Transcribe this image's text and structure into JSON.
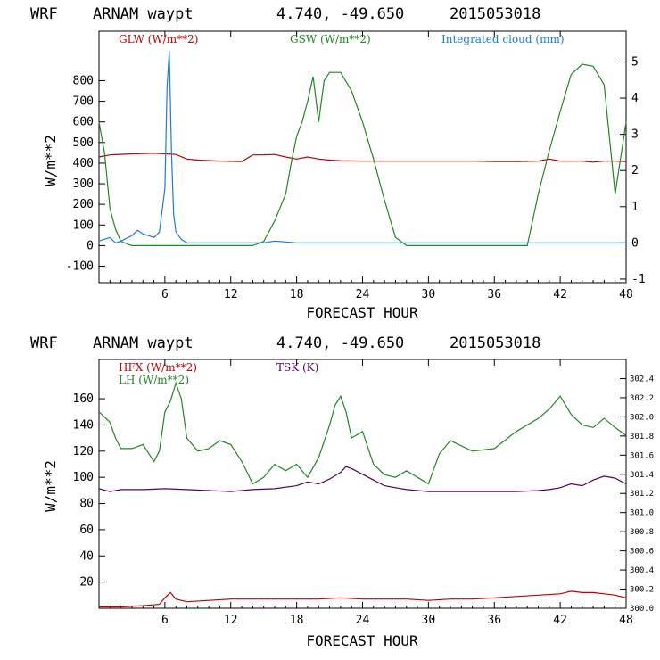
{
  "chart_data": [
    {
      "type": "line",
      "header": {
        "model": "WRF",
        "station": "ARNAM waypt",
        "coords": "4.740, -49.650",
        "date": "2015053018"
      },
      "xlabel": "FORECAST HOUR",
      "ylabel": "W/m**2",
      "xlim": [
        0,
        48
      ],
      "ylim": [
        -180,
        1040
      ],
      "y2lim": [
        -1.1,
        5.85
      ],
      "xticks": [
        "6",
        "12",
        "18",
        "24",
        "30",
        "36",
        "42",
        "48"
      ],
      "yticks": [
        "-100",
        "0",
        "100",
        "200",
        "300",
        "400",
        "500",
        "600",
        "700",
        "800"
      ],
      "y2ticks": [
        "-1",
        "0",
        "1",
        "2",
        "3",
        "4",
        "5"
      ],
      "colors": {
        "glw": "#c00000",
        "gsw": "#1f8a1f",
        "cloud": "#1e7ae0"
      },
      "series": [
        {
          "name": "GLW (W/m**2)",
          "axis": "left",
          "color": "#c00000",
          "x": [
            0,
            1,
            3,
            5,
            6,
            7,
            8,
            9,
            11,
            13,
            14,
            15,
            16,
            17,
            18,
            19,
            20,
            21,
            22,
            24,
            26,
            28,
            30,
            32,
            34,
            36,
            38,
            40,
            41,
            42,
            43,
            44,
            45,
            46,
            47,
            48
          ],
          "y": [
            430,
            440,
            445,
            448,
            445,
            442,
            420,
            415,
            410,
            408,
            440,
            440,
            442,
            430,
            420,
            430,
            420,
            415,
            412,
            410,
            410,
            410,
            410,
            410,
            410,
            408,
            408,
            410,
            420,
            410,
            410,
            410,
            405,
            410,
            410,
            408
          ]
        },
        {
          "name": "GSW (W/m**2)",
          "axis": "left",
          "color": "#1f8a1f",
          "x": [
            0,
            0.5,
            1,
            1.5,
            2,
            3,
            4,
            6,
            8,
            10,
            12,
            14,
            15,
            16,
            17,
            17.5,
            18,
            18.5,
            19,
            19.5,
            20,
            20.5,
            21,
            22,
            23,
            24,
            25,
            26,
            27,
            28,
            30,
            32,
            34,
            36,
            38,
            39,
            40,
            41,
            42,
            43,
            44,
            45,
            46,
            47,
            48
          ],
          "y": [
            600,
            450,
            180,
            80,
            20,
            0,
            0,
            0,
            0,
            0,
            0,
            0,
            20,
            120,
            250,
            400,
            530,
            600,
            700,
            820,
            600,
            800,
            840,
            840,
            750,
            600,
            420,
            220,
            40,
            0,
            0,
            0,
            0,
            0,
            0,
            0,
            250,
            460,
            650,
            830,
            880,
            870,
            780,
            250,
            600
          ]
        },
        {
          "name": "Integrated cloud (mm)",
          "axis": "right",
          "color": "#1e7ae0",
          "x": [
            0,
            1,
            1.5,
            2,
            3,
            3.5,
            4,
            5,
            5.5,
            6,
            6.2,
            6.4,
            6.6,
            6.8,
            7,
            7.5,
            8,
            9,
            12,
            14,
            15,
            16,
            18,
            20,
            22,
            24,
            26,
            28,
            30,
            36,
            42,
            48
          ],
          "y": [
            0.05,
            0.15,
            0.0,
            0.05,
            0.2,
            0.35,
            0.25,
            0.15,
            0.3,
            1.5,
            4.3,
            5.3,
            2.5,
            0.8,
            0.3,
            0.1,
            0.0,
            0.0,
            0.0,
            0.0,
            0.0,
            0.05,
            0.0,
            0.0,
            0.0,
            0.0,
            0.0,
            0.0,
            0.0,
            0.0,
            0.0,
            0.0
          ]
        }
      ]
    },
    {
      "type": "line",
      "header": {
        "model": "WRF",
        "station": "ARNAM waypt",
        "coords": "4.740, -49.650",
        "date": "2015053018"
      },
      "xlabel": "FORECAST HOUR",
      "ylabel": "W/m**2",
      "xlim": [
        0,
        48
      ],
      "ylim": [
        0,
        190
      ],
      "y2lim": [
        300.0,
        302.6
      ],
      "xticks": [
        "6",
        "12",
        "18",
        "24",
        "30",
        "36",
        "42",
        "48"
      ],
      "yticks": [
        "20",
        "40",
        "60",
        "80",
        "100",
        "120",
        "140",
        "160"
      ],
      "y2ticks": [
        "300.0",
        "300.2",
        "300.4",
        "300.6",
        "300.8",
        "301.0",
        "301.2",
        "301.4",
        "301.6",
        "301.8",
        "302.0",
        "302.2",
        "302.4"
      ],
      "colors": {
        "hfx": "#c00000",
        "lh": "#1f8a1f",
        "tsk": "#5a005a"
      },
      "series": [
        {
          "name": "HFX (W/m**2)",
          "axis": "left",
          "color": "#c00000",
          "x": [
            0,
            2,
            4,
            5.5,
            6,
            6.5,
            7,
            8,
            12,
            16,
            18,
            20,
            22,
            24,
            26,
            28,
            30,
            32,
            34,
            36,
            38,
            40,
            42,
            43,
            44,
            45,
            46,
            47,
            48
          ],
          "y": [
            1,
            1,
            2,
            3,
            8,
            12,
            7,
            5,
            7,
            7,
            7,
            7,
            8,
            7,
            7,
            7,
            6,
            7,
            7,
            8,
            9,
            10,
            11,
            13,
            12,
            12,
            11,
            10,
            8
          ]
        },
        {
          "name": "LH (W/m**2)",
          "axis": "left",
          "color": "#1f8a1f",
          "x": [
            0,
            1,
            1.5,
            2,
            3,
            4,
            5,
            5.5,
            6,
            6.5,
            7,
            7.5,
            8,
            9,
            10,
            11,
            12,
            13,
            14,
            15,
            16,
            17,
            18,
            19,
            20,
            21,
            21.5,
            22,
            22.5,
            23,
            24,
            25,
            26,
            27,
            28,
            29,
            30,
            31,
            32,
            34,
            36,
            38,
            40,
            41,
            42,
            43,
            44,
            45,
            46,
            47,
            48
          ],
          "y": [
            150,
            142,
            130,
            122,
            122,
            125,
            112,
            120,
            150,
            158,
            172,
            160,
            130,
            120,
            122,
            128,
            125,
            112,
            95,
            100,
            110,
            105,
            110,
            100,
            115,
            140,
            155,
            162,
            150,
            130,
            135,
            110,
            102,
            100,
            105,
            100,
            95,
            118,
            128,
            120,
            122,
            135,
            145,
            152,
            162,
            148,
            140,
            138,
            145,
            138,
            132
          ]
        },
        {
          "name": "TSK (K)",
          "axis": "right",
          "color": "#5a005a",
          "x": [
            0,
            1,
            2,
            4,
            6,
            8,
            10,
            12,
            14,
            16,
            18,
            19,
            20,
            21,
            22,
            22.5,
            23,
            24,
            25,
            26,
            27,
            28,
            30,
            32,
            34,
            36,
            38,
            40,
            41,
            42,
            43,
            44,
            45,
            46,
            47,
            48
          ],
          "y": [
            301.25,
            301.22,
            301.24,
            301.24,
            301.25,
            301.24,
            301.23,
            301.22,
            301.24,
            301.25,
            301.28,
            301.32,
            301.3,
            301.35,
            301.42,
            301.48,
            301.46,
            301.4,
            301.34,
            301.28,
            301.26,
            301.24,
            301.22,
            301.22,
            301.22,
            301.22,
            301.22,
            301.23,
            301.24,
            301.26,
            301.3,
            301.28,
            301.34,
            301.38,
            301.36,
            301.3
          ]
        }
      ]
    }
  ]
}
